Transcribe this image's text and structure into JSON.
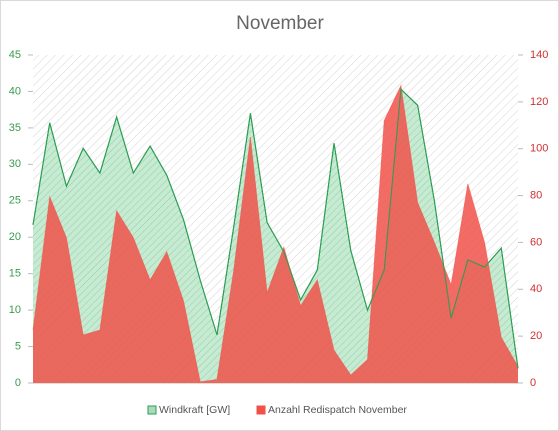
{
  "chart_data": {
    "type": "area",
    "title": "November",
    "ylim": [
      0,
      45
    ],
    "yticks": [
      0,
      5,
      10,
      15,
      20,
      25,
      30,
      35,
      40,
      45
    ],
    "y2lim": [
      0,
      140
    ],
    "y2ticks": [
      0,
      20,
      40,
      60,
      80,
      100,
      120,
      140
    ],
    "legend": "bottom",
    "series": [
      {
        "name": "Windkraft [GW]",
        "color": "#2e9e55",
        "fill": "#a8dcb8",
        "values": [
          21.7,
          35.7,
          27,
          32.2,
          28.8,
          36.5,
          28.8,
          32.5,
          28.5,
          22.4,
          14.1,
          6.6,
          21.4,
          37,
          22,
          18,
          11.4,
          15.5,
          32.9,
          18.2,
          10,
          15.5,
          40.3,
          38.1,
          25,
          8.9,
          16.9,
          15.9,
          18.5,
          2
        ]
      },
      {
        "name": "Anzahl Redispatch November",
        "color": "#f0524a",
        "axis": "y2",
        "values": [
          22.6,
          79.5,
          62,
          20.5,
          22.6,
          73.5,
          62,
          44,
          56,
          35,
          0.5,
          1.5,
          48,
          105,
          38.5,
          58,
          33,
          44,
          14,
          3.4,
          10,
          112,
          127,
          77,
          60,
          42,
          85,
          60,
          19.5,
          7
        ]
      }
    ]
  }
}
